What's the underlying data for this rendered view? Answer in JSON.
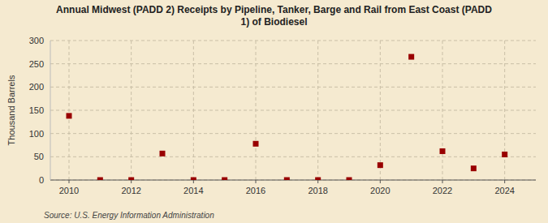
{
  "chart_data": {
    "type": "scatter",
    "title": "Annual Midwest (PADD 2) Receipts by Pipeline, Tanker, Barge and Rail from East Coast (PADD\n1) of Biodiesel",
    "ylabel": "Thousand Barrels",
    "source": "Source: U.S. Energy Information Administration",
    "x": [
      2010,
      2011,
      2012,
      2013,
      2014,
      2015,
      2016,
      2017,
      2018,
      2019,
      2020,
      2021,
      2022,
      2023,
      2024
    ],
    "values": [
      138,
      0,
      0,
      57,
      0,
      0,
      78,
      0,
      0,
      0,
      32,
      265,
      62,
      25,
      55
    ],
    "color": "#990000",
    "marker": "square",
    "xlim": [
      2009.4,
      2025.0
    ],
    "xticks": [
      2010,
      2012,
      2014,
      2016,
      2018,
      2020,
      2022,
      2024
    ],
    "ylim": [
      0,
      300
    ],
    "yticks": [
      0,
      50,
      100,
      150,
      200,
      250,
      300
    ],
    "grid": true
  }
}
